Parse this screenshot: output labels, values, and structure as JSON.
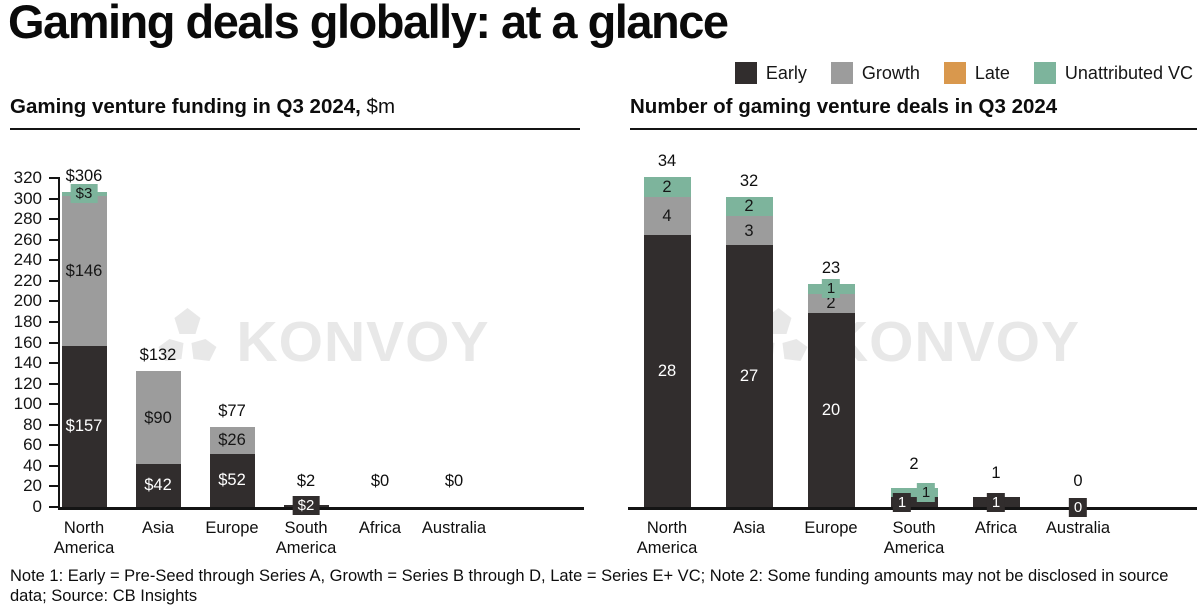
{
  "title": "Gaming deals globally: at a glance",
  "legend": {
    "items": [
      {
        "label": "Early",
        "color": "#312d2d"
      },
      {
        "label": "Growth",
        "color": "#9c9c9c"
      },
      {
        "label": "Late",
        "color": "#d9984d"
      },
      {
        "label": "Unattributed VC",
        "color": "#7db49c"
      }
    ]
  },
  "watermark": {
    "text": "KONVOY"
  },
  "note": "Note 1: Early = Pre-Seed through Series A, Growth = Series B through D, Late = Series E+ VC; Note 2: Some funding amounts may not be disclosed in source data; Source: CB Insights",
  "colors": {
    "early": "#312d2d",
    "growth": "#9c9c9c",
    "late": "#d9984d",
    "unattributed": "#7db49c",
    "axis": "#141414",
    "watermark": "#e8e8e8"
  },
  "chart_data": [
    {
      "type": "bar",
      "stacked": true,
      "title": "Gaming venture funding in Q3 2024,",
      "title_suffix": " $m",
      "categories": [
        "North America",
        "Asia",
        "Europe",
        "South America",
        "Africa",
        "Australia"
      ],
      "series": [
        {
          "name": "Early",
          "color": "#312d2d",
          "values": [
            157,
            42,
            52,
            2,
            0,
            0
          ],
          "labels": [
            "$157",
            "$42",
            "$52",
            "$2",
            "",
            ""
          ]
        },
        {
          "name": "Growth",
          "color": "#9c9c9c",
          "values": [
            146,
            90,
            26,
            0,
            0,
            0
          ],
          "labels": [
            "$146",
            "$90",
            "$26",
            "",
            "",
            ""
          ]
        },
        {
          "name": "Late",
          "color": "#d9984d",
          "values": [
            0,
            0,
            0,
            0,
            0,
            0
          ],
          "labels": [
            "",
            "",
            "",
            "",
            "",
            ""
          ]
        },
        {
          "name": "Unattributed VC",
          "color": "#7db49c",
          "values": [
            3,
            0,
            0,
            0,
            0,
            0
          ],
          "labels": [
            "$3",
            "",
            "",
            "",
            "",
            ""
          ]
        }
      ],
      "totals": [
        "$306",
        "$132",
        "$77",
        "$2",
        "$0",
        "$0"
      ],
      "ylim": [
        0,
        320
      ],
      "ytick_step": 20,
      "yticks_shown": true,
      "grid": false,
      "legend_position": "top-right"
    },
    {
      "type": "bar",
      "stacked": true,
      "title": "Number of gaming venture deals in Q3 2024",
      "title_suffix": "",
      "categories": [
        "North America",
        "Asia",
        "Europe",
        "South America",
        "Africa",
        "Australia"
      ],
      "series": [
        {
          "name": "Early",
          "color": "#312d2d",
          "values": [
            28,
            27,
            20,
            1,
            1,
            0
          ],
          "labels": [
            "28",
            "27",
            "20",
            "1",
            "1",
            "0"
          ]
        },
        {
          "name": "Growth",
          "color": "#9c9c9c",
          "values": [
            4,
            3,
            2,
            0,
            0,
            0
          ],
          "labels": [
            "4",
            "3",
            "2",
            "",
            "",
            ""
          ]
        },
        {
          "name": "Late",
          "color": "#d9984d",
          "values": [
            0,
            0,
            0,
            0,
            0,
            0
          ],
          "labels": [
            "",
            "",
            "",
            "",
            "",
            ""
          ]
        },
        {
          "name": "Unattributed VC",
          "color": "#7db49c",
          "values": [
            2,
            2,
            1,
            1,
            0,
            0
          ],
          "labels": [
            "2",
            "2",
            "1",
            "1",
            "",
            ""
          ]
        }
      ],
      "totals": [
        "34",
        "32",
        "23",
        "2",
        "1",
        "0"
      ],
      "ylim": [
        0,
        34
      ],
      "yticks_shown": false,
      "grid": false
    }
  ]
}
